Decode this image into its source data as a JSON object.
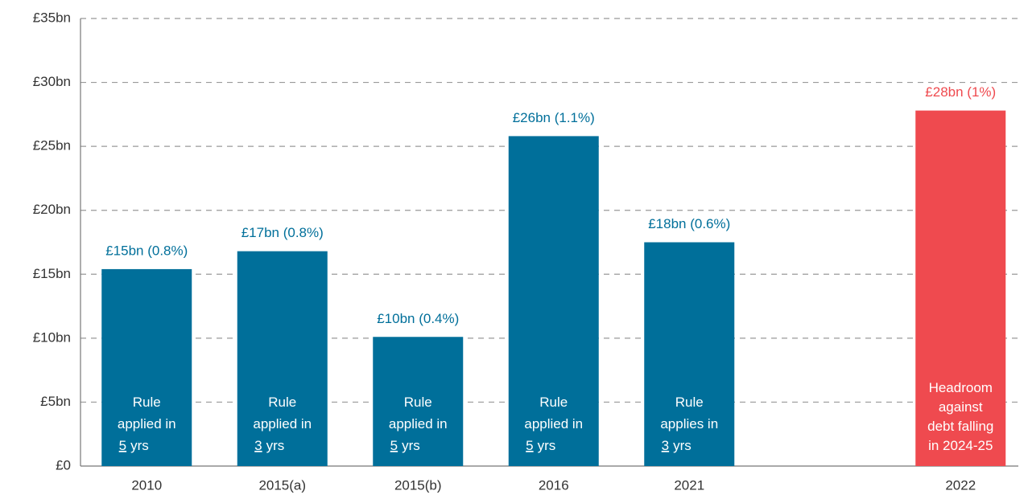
{
  "chart_data": {
    "type": "bar",
    "categories": [
      "2010",
      "2015(a)",
      "2015(b)",
      "2016",
      "2021",
      null,
      "2022"
    ],
    "values": [
      15.4,
      16.8,
      10.1,
      25.8,
      17.5,
      null,
      27.8
    ],
    "value_labels": [
      "£15bn (0.8%)",
      "£17bn (0.8%)",
      "£10bn (0.4%)",
      "£26bn (1.1%)",
      "£18bn (0.6%)",
      null,
      "£28bn (1%)"
    ],
    "colors": [
      "#006f9a",
      "#006f9a",
      "#006f9a",
      "#006f9a",
      "#006f9a",
      null,
      "#ef4a4f"
    ],
    "bar_notes": [
      {
        "lines": [
          "Rule",
          "applied in"
        ],
        "years": "5",
        "unit": "yrs"
      },
      {
        "lines": [
          "Rule",
          "applied in"
        ],
        "years": "3",
        "unit": "yrs"
      },
      {
        "lines": [
          "Rule",
          "applied in"
        ],
        "years": "5",
        "unit": "yrs"
      },
      {
        "lines": [
          "Rule",
          "applied in"
        ],
        "years": "5",
        "unit": "yrs"
      },
      {
        "lines": [
          "Rule",
          "applies in"
        ],
        "years": "3",
        "unit": "yrs"
      },
      null,
      {
        "lines": [
          "Headroom",
          "against",
          "debt falling",
          "in 2024-25"
        ]
      }
    ],
    "ylim": [
      0,
      35
    ],
    "yticks": [
      {
        "value": 0,
        "label": "£0"
      },
      {
        "value": 5,
        "label": "£5bn"
      },
      {
        "value": 10,
        "label": "£10bn"
      },
      {
        "value": 15,
        "label": "£15bn"
      },
      {
        "value": 20,
        "label": "£20bn"
      },
      {
        "value": 25,
        "label": "£25bn"
      },
      {
        "value": 30,
        "label": "£30bn"
      },
      {
        "value": 35,
        "label": "£35bn"
      }
    ],
    "grid": true
  }
}
